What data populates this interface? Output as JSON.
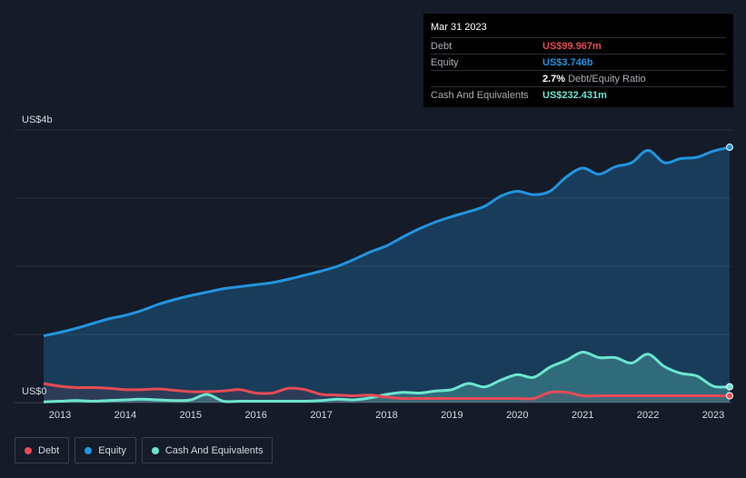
{
  "tooltip": {
    "date": "Mar 31 2023",
    "rows": [
      {
        "label": "Debt",
        "value": "US$99.967m",
        "color": "#e64b55"
      },
      {
        "label": "Equity",
        "value": "US$3.746b",
        "color": "#2394df"
      },
      {
        "label": "",
        "value": "2.7%",
        "suffix": "Debt/Equity Ratio",
        "color": "#ffffff"
      },
      {
        "label": "Cash And Equivalents",
        "value": "US$232.431m",
        "color": "#6ce5cf"
      }
    ]
  },
  "legend": [
    {
      "label": "Debt",
      "color": "#e64b55"
    },
    {
      "label": "Equity",
      "color": "#2394df"
    },
    {
      "label": "Cash And Equivalents",
      "color": "#6ce5cf"
    }
  ],
  "chart_data": {
    "type": "area",
    "title": "",
    "xlabel": "",
    "ylabel": "",
    "y_top_label": "US$4b",
    "y_zero_label": "US$0",
    "x_ticks": [
      "2013",
      "2014",
      "2015",
      "2016",
      "2017",
      "2018",
      "2019",
      "2020",
      "2021",
      "2022",
      "2023"
    ],
    "xlim": [
      2012.75,
      2023.25
    ],
    "ylim": [
      0,
      4.0
    ],
    "grid": true,
    "legend_position": "bottom-left",
    "series": [
      {
        "name": "Equity",
        "color": "#2394df",
        "x": [
          2012.75,
          2013.0,
          2013.25,
          2013.5,
          2013.75,
          2014.0,
          2014.25,
          2014.5,
          2014.75,
          2015.0,
          2015.25,
          2015.5,
          2015.75,
          2016.0,
          2016.25,
          2016.5,
          2016.75,
          2017.0,
          2017.25,
          2017.5,
          2017.75,
          2018.0,
          2018.25,
          2018.5,
          2018.75,
          2019.0,
          2019.25,
          2019.5,
          2019.75,
          2020.0,
          2020.25,
          2020.5,
          2020.75,
          2021.0,
          2021.25,
          2021.5,
          2021.75,
          2022.0,
          2022.25,
          2022.5,
          2022.75,
          2023.0,
          2023.25
        ],
        "values": [
          0.98,
          1.03,
          1.09,
          1.16,
          1.23,
          1.28,
          1.35,
          1.44,
          1.51,
          1.57,
          1.62,
          1.67,
          1.7,
          1.73,
          1.76,
          1.81,
          1.87,
          1.93,
          2.0,
          2.1,
          2.21,
          2.3,
          2.43,
          2.55,
          2.65,
          2.73,
          2.8,
          2.88,
          3.03,
          3.1,
          3.05,
          3.1,
          3.31,
          3.44,
          3.35,
          3.46,
          3.52,
          3.7,
          3.52,
          3.58,
          3.6,
          3.69,
          3.746
        ]
      },
      {
        "name": "Debt",
        "color": "#e64b55",
        "x": [
          2012.75,
          2013.0,
          2013.25,
          2013.5,
          2013.75,
          2014.0,
          2014.25,
          2014.5,
          2014.75,
          2015.0,
          2015.25,
          2015.5,
          2015.75,
          2016.0,
          2016.25,
          2016.5,
          2016.75,
          2017.0,
          2017.25,
          2017.5,
          2017.75,
          2018.0,
          2018.25,
          2018.5,
          2018.75,
          2019.0,
          2019.25,
          2019.5,
          2019.75,
          2020.0,
          2020.25,
          2020.5,
          2020.75,
          2021.0,
          2021.25,
          2021.5,
          2021.75,
          2022.0,
          2022.25,
          2022.5,
          2022.75,
          2023.0,
          2023.25
        ],
        "values": [
          0.28,
          0.24,
          0.22,
          0.22,
          0.21,
          0.19,
          0.19,
          0.2,
          0.18,
          0.16,
          0.16,
          0.17,
          0.19,
          0.14,
          0.14,
          0.21,
          0.19,
          0.12,
          0.11,
          0.1,
          0.11,
          0.08,
          0.06,
          0.06,
          0.06,
          0.06,
          0.06,
          0.06,
          0.06,
          0.06,
          0.06,
          0.15,
          0.15,
          0.1,
          0.1,
          0.1,
          0.1,
          0.1,
          0.1,
          0.1,
          0.1,
          0.1,
          0.09997
        ]
      },
      {
        "name": "Cash And Equivalents",
        "color": "#6ce5cf",
        "x": [
          2012.75,
          2013.0,
          2013.25,
          2013.5,
          2013.75,
          2014.0,
          2014.25,
          2014.5,
          2014.75,
          2015.0,
          2015.25,
          2015.5,
          2015.75,
          2016.0,
          2016.25,
          2016.5,
          2016.75,
          2017.0,
          2017.25,
          2017.5,
          2017.75,
          2018.0,
          2018.25,
          2018.5,
          2018.75,
          2019.0,
          2019.25,
          2019.5,
          2019.75,
          2020.0,
          2020.25,
          2020.5,
          2020.75,
          2021.0,
          2021.25,
          2021.5,
          2021.75,
          2022.0,
          2022.25,
          2022.5,
          2022.75,
          2023.0,
          2023.25
        ],
        "values": [
          0.01,
          0.02,
          0.03,
          0.02,
          0.03,
          0.04,
          0.05,
          0.04,
          0.03,
          0.04,
          0.12,
          0.02,
          0.02,
          0.02,
          0.02,
          0.02,
          0.02,
          0.03,
          0.05,
          0.04,
          0.07,
          0.12,
          0.15,
          0.14,
          0.17,
          0.19,
          0.28,
          0.23,
          0.33,
          0.41,
          0.37,
          0.52,
          0.62,
          0.74,
          0.66,
          0.66,
          0.58,
          0.71,
          0.53,
          0.43,
          0.39,
          0.24,
          0.232
        ]
      }
    ]
  }
}
